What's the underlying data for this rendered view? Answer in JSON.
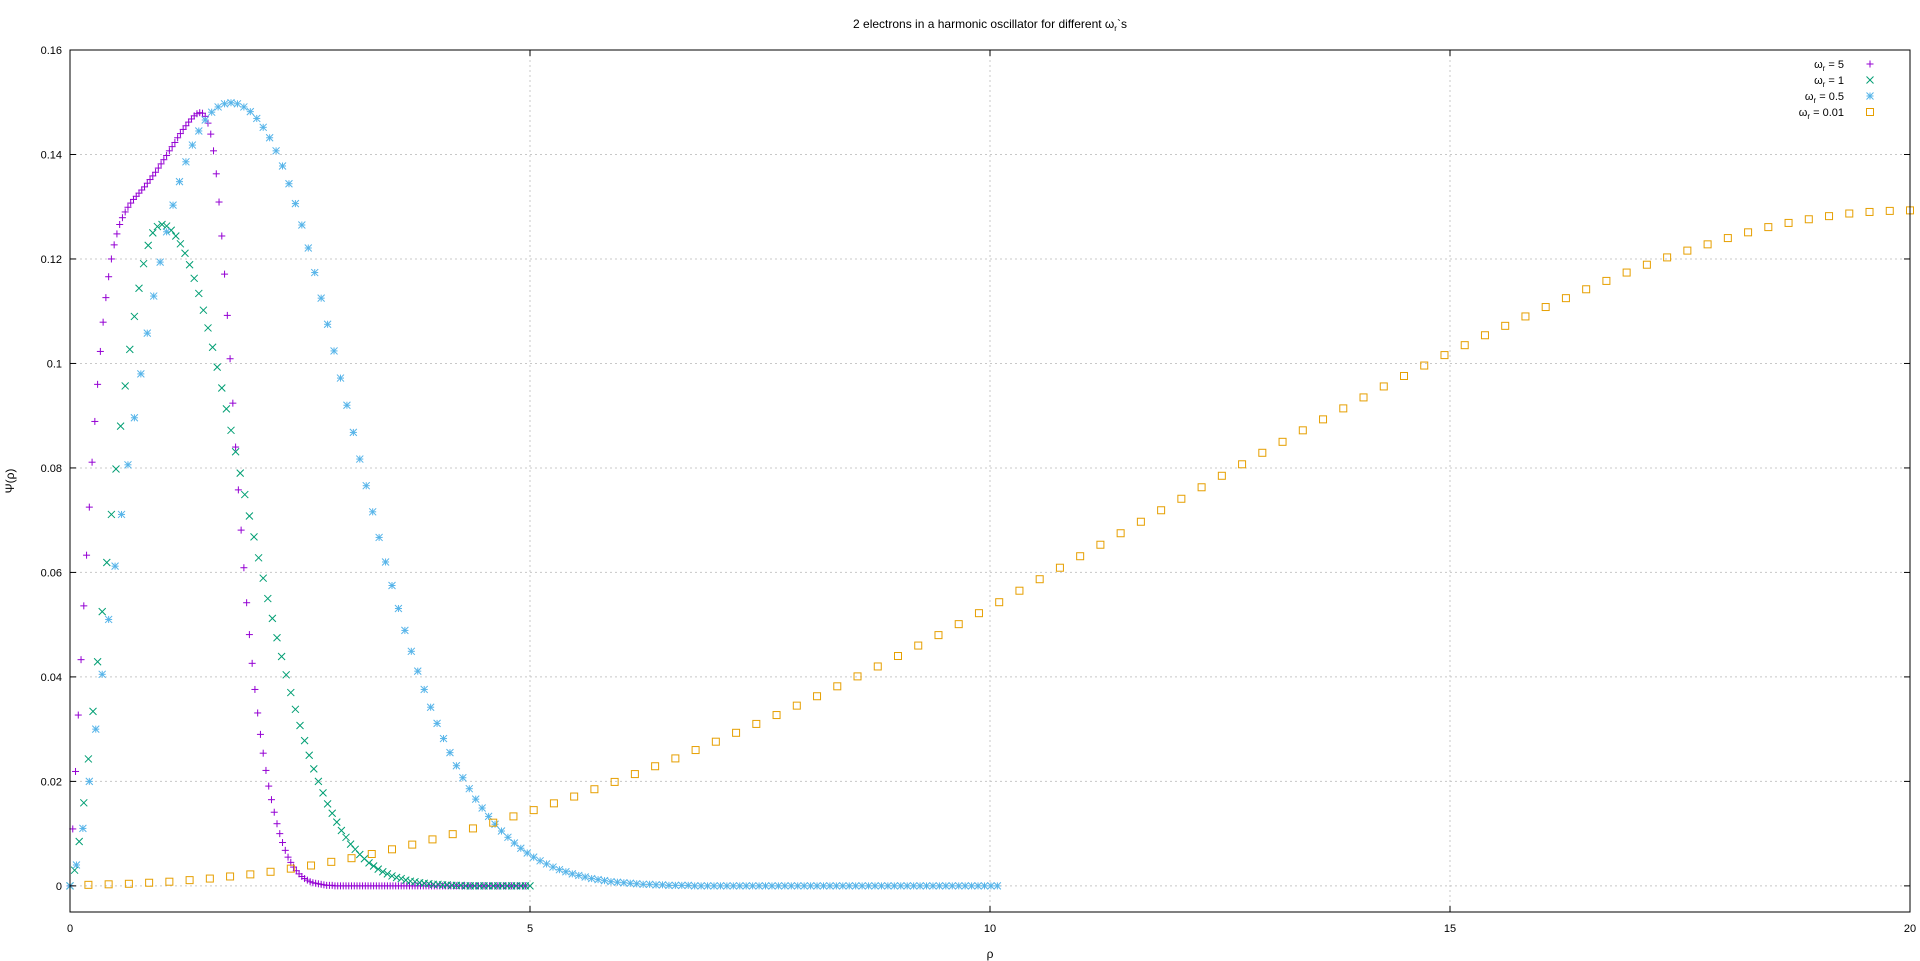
{
  "chart_data": {
    "type": "scatter",
    "title_prefix": "2 electrons in a harmonic oscillator for different ",
    "title_symbol": "ω",
    "title_sub": "r",
    "title_suffix": "`s",
    "xlabel": "ρ",
    "ylabel": "Ψ(ρ)",
    "xlim": [
      0,
      20
    ],
    "ylim": [
      -0.005,
      0.16
    ],
    "xticks": [
      0,
      5,
      10,
      15,
      20
    ],
    "xtick_labels": [
      "0",
      "5",
      "10",
      "15",
      "20"
    ],
    "yticks": [
      0,
      0.02,
      0.04,
      0.06,
      0.08,
      0.1,
      0.12,
      0.14,
      0.16
    ],
    "ytick_labels": [
      "0",
      "0.02",
      "0.04",
      "0.06",
      "0.08",
      "0.1",
      "0.12",
      "0.14",
      "0.16"
    ],
    "grid": true,
    "legend_position": "top-right",
    "series": [
      {
        "name": "ωr = 5",
        "label_symbol": "ω",
        "label_sub": "r",
        "label_value": " = 5",
        "marker": "plus",
        "color": "#9400d3",
        "x_start": 0.0,
        "x_step": 0.03,
        "y": [
          0,
          0.0109,
          0.0219,
          0.0327,
          0.0433,
          0.0536,
          0.0633,
          0.0725,
          0.0811,
          0.0889,
          0.096,
          0.1023,
          0.1079,
          0.1126,
          0.1166,
          0.12,
          0.1227,
          0.1248,
          0.1266,
          0.1279,
          0.129,
          0.1299,
          0.1307,
          0.1314,
          0.132,
          0.1326,
          0.1332,
          0.1338,
          0.1345,
          0.1352,
          0.1359,
          0.1366,
          0.1374,
          0.1382,
          0.139,
          0.1398,
          0.1407,
          0.1415,
          0.1423,
          0.1432,
          0.144,
          0.1448,
          0.1455,
          0.1462,
          0.1468,
          0.1474,
          0.1478,
          0.148,
          0.1479,
          0.1473,
          0.146,
          0.1439,
          0.1407,
          0.1363,
          0.1309,
          0.1244,
          0.1171,
          0.1092,
          0.1009,
          0.0924,
          0.084,
          0.0758,
          0.0681,
          0.0609,
          0.0542,
          0.0481,
          0.0426,
          0.0376,
          0.0331,
          0.029,
          0.0254,
          0.0221,
          0.0191,
          0.0165,
          0.0141,
          0.0119,
          0.01,
          0.0083,
          0.0068,
          0.0055,
          0.0045,
          0.0036,
          0.0029,
          0.0023,
          0.0018,
          0.0014,
          0.0011,
          0.0008,
          0.0006,
          0.0005,
          0.0004,
          0.0003,
          0.0002,
          0.0001,
          0.0001,
          0.0001,
          0,
          0,
          0,
          0,
          0,
          0,
          0,
          0,
          0,
          0,
          0,
          0,
          0,
          0,
          0,
          0,
          0,
          0,
          0,
          0,
          0,
          0,
          0,
          0,
          0,
          0,
          0,
          0,
          0,
          0,
          0,
          0,
          0,
          0,
          0,
          0,
          0,
          0,
          0,
          0,
          0,
          0,
          0,
          0,
          0,
          0,
          0,
          0,
          0,
          0,
          0,
          0,
          0,
          0,
          0,
          0,
          0,
          0,
          0,
          0,
          0,
          0,
          0,
          0,
          0,
          0,
          0,
          0,
          0,
          0
        ]
      },
      {
        "name": "ωr = 1",
        "label_symbol": "ω",
        "label_sub": "r",
        "label_value": " = 1",
        "marker": "cross",
        "color": "#009e73",
        "x_start": 0.0,
        "x_step": 0.05,
        "y": [
          0,
          0.003,
          0.0085,
          0.0159,
          0.0243,
          0.0334,
          0.0429,
          0.0525,
          0.0619,
          0.0711,
          0.0798,
          0.088,
          0.0957,
          0.1027,
          0.109,
          0.1144,
          0.1191,
          0.1226,
          0.125,
          0.1262,
          0.1266,
          0.1263,
          0.1255,
          0.1244,
          0.1229,
          0.1211,
          0.1189,
          0.1163,
          0.1134,
          0.1102,
          0.1068,
          0.1031,
          0.0993,
          0.0953,
          0.0913,
          0.0872,
          0.0831,
          0.079,
          0.0749,
          0.0708,
          0.0668,
          0.0628,
          0.0589,
          0.055,
          0.0512,
          0.0475,
          0.0439,
          0.0404,
          0.037,
          0.0338,
          0.0307,
          0.0278,
          0.025,
          0.0224,
          0.02,
          0.0178,
          0.0157,
          0.0139,
          0.0122,
          0.0106,
          0.0093,
          0.008,
          0.007,
          0.006,
          0.0052,
          0.0044,
          0.0038,
          0.0032,
          0.0027,
          0.0023,
          0.0019,
          0.0016,
          0.0014,
          0.0011,
          0.0009,
          0.0008,
          0.0006,
          0.0005,
          0.0004,
          0.0003,
          0.0003,
          0.0002,
          0.0002,
          0.0001,
          0.0001,
          0.0001,
          0,
          0,
          0,
          0,
          0,
          0,
          0,
          0,
          0,
          0,
          0,
          0,
          0,
          0,
          0
        ]
      },
      {
        "name": "ωr = 0.5",
        "label_symbol": "ω",
        "label_sub": "r",
        "label_value": " = 0.5",
        "marker": "star",
        "color": "#56b4e9",
        "x_start": 0.0,
        "x_step": 0.07,
        "y": [
          0,
          0.004,
          0.011,
          0.02,
          0.03,
          0.0405,
          0.051,
          0.0612,
          0.0711,
          0.0806,
          0.0896,
          0.098,
          0.1058,
          0.1129,
          0.1194,
          0.1252,
          0.1303,
          0.1348,
          0.1386,
          0.1418,
          0.1445,
          0.1466,
          0.1481,
          0.1491,
          0.1497,
          0.1499,
          0.1497,
          0.1491,
          0.1482,
          0.1469,
          0.1452,
          0.1432,
          0.1407,
          0.1378,
          0.1344,
          0.1306,
          0.1265,
          0.1221,
          0.1174,
          0.1125,
          0.1075,
          0.1024,
          0.0972,
          0.092,
          0.0868,
          0.0817,
          0.0766,
          0.0716,
          0.0667,
          0.062,
          0.0575,
          0.0531,
          0.0489,
          0.0449,
          0.0411,
          0.0376,
          0.0342,
          0.0311,
          0.0282,
          0.0255,
          0.023,
          0.0207,
          0.0186,
          0.0166,
          0.0149,
          0.0133,
          0.0118,
          0.0105,
          0.0093,
          0.0082,
          0.0072,
          0.0063,
          0.0055,
          0.0048,
          0.0042,
          0.0036,
          0.0031,
          0.0027,
          0.0023,
          0.002,
          0.0017,
          0.0014,
          0.0012,
          0.001,
          0.0008,
          0.0007,
          0.0006,
          0.0005,
          0.0004,
          0.0003,
          0.0003,
          0.0002,
          0.0002,
          0.0001,
          0.0001,
          0.0001,
          0.0001,
          0,
          0,
          0,
          0,
          0,
          0,
          0,
          0,
          0,
          0,
          0,
          0,
          0,
          0,
          0,
          0,
          0,
          0,
          0,
          0,
          0,
          0,
          0,
          0,
          0,
          0,
          0,
          0,
          0,
          0,
          0,
          0,
          0,
          0,
          0,
          0,
          0,
          0,
          0,
          0,
          0,
          0,
          0,
          0,
          0,
          0,
          0,
          0
        ]
      },
      {
        "name": "ωr = 0.01",
        "label_symbol": "ω",
        "label_sub": "r",
        "label_value": " = 0.01",
        "marker": "square",
        "color": "#e69f00",
        "x_start": 0.2,
        "x_step": 0.22,
        "y": [
          0.0002,
          0.0003,
          0.0004,
          0.0006,
          0.0008,
          0.0011,
          0.0014,
          0.0018,
          0.0022,
          0.0027,
          0.0033,
          0.0039,
          0.0046,
          0.0053,
          0.0061,
          0.007,
          0.0079,
          0.0089,
          0.0099,
          0.011,
          0.0121,
          0.0133,
          0.0145,
          0.0158,
          0.0171,
          0.0185,
          0.0199,
          0.0214,
          0.0229,
          0.0244,
          0.026,
          0.0276,
          0.0293,
          0.031,
          0.0327,
          0.0345,
          0.0363,
          0.0382,
          0.0401,
          0.042,
          0.044,
          0.046,
          0.048,
          0.0501,
          0.0522,
          0.0543,
          0.0565,
          0.0587,
          0.0609,
          0.0631,
          0.0653,
          0.0675,
          0.0697,
          0.0719,
          0.0741,
          0.0763,
          0.0785,
          0.0807,
          0.0829,
          0.085,
          0.0872,
          0.0893,
          0.0914,
          0.0935,
          0.0956,
          0.0976,
          0.0996,
          0.1016,
          0.1035,
          0.1054,
          0.1072,
          0.109,
          0.1108,
          0.1125,
          0.1142,
          0.1158,
          0.1174,
          0.1189,
          0.1203,
          0.1216,
          0.1228,
          0.124,
          0.1251,
          0.1261,
          0.1269,
          0.1276,
          0.1282,
          0.1287,
          0.129,
          0.1292,
          0.1293,
          0.1292,
          0.129,
          0.1287,
          0.1283,
          0.1278,
          0.1273,
          0.1267
        ]
      }
    ]
  }
}
